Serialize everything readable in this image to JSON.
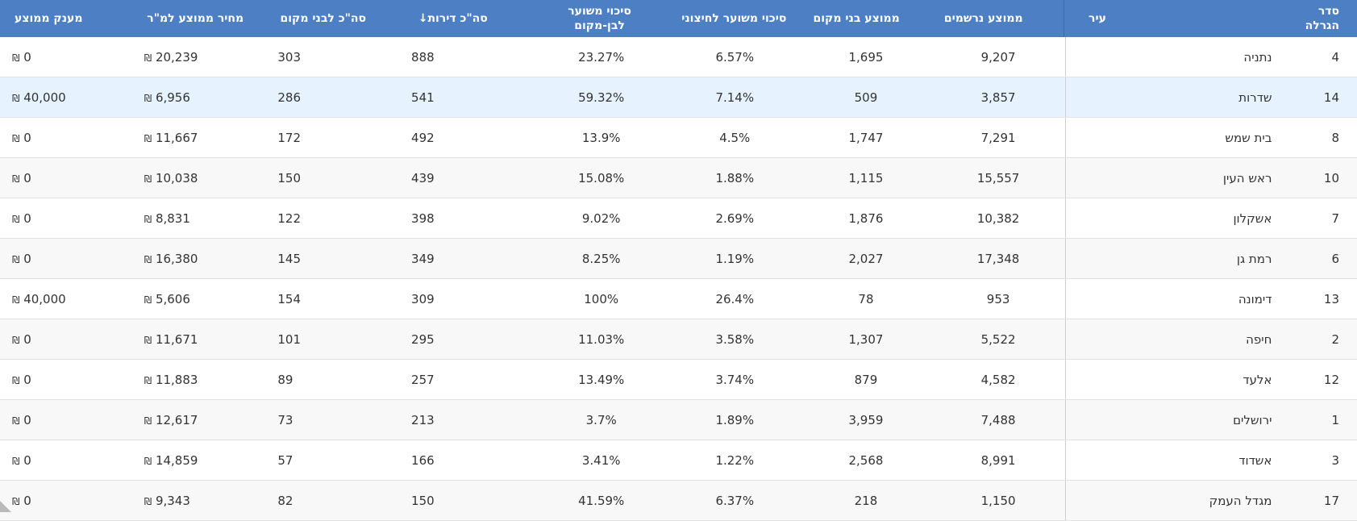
{
  "table": {
    "headers": {
      "order": "סדר הגרלה",
      "city": "עיר",
      "avg_registered": "ממוצע נרשמים",
      "avg_locals": "ממוצע בני מקום",
      "outsider_chance": "סיכוי משוער לחיצוני",
      "local_chance_line1": "סיכוי משוער",
      "local_chance_line2": "לבן-מקום",
      "total_apartments": "סה\"כ דירות",
      "total_locals": "סה\"כ לבני מקום",
      "avg_price_sqm": "מחיר ממוצע למ\"ר",
      "avg_grant": "מענק ממוצע"
    },
    "sort_icon": "arrow-down-icon",
    "sort_glyph": "↓",
    "currency_symbol": "₪",
    "rows": [
      {
        "order": "4",
        "city": "נתניה",
        "avg_registered": "9,207",
        "avg_locals": "1,695",
        "outsider_chance": "6.57%",
        "local_chance": "23.27%",
        "total_apartments": "888",
        "total_locals": "303",
        "price": "20,239",
        "grant": "0"
      },
      {
        "order": "14",
        "city": "שדרות",
        "avg_registered": "3,857",
        "avg_locals": "509",
        "outsider_chance": "7.14%",
        "local_chance": "59.32%",
        "total_apartments": "541",
        "total_locals": "286",
        "price": "6,956",
        "grant": "40,000"
      },
      {
        "order": "8",
        "city": "בית שמש",
        "avg_registered": "7,291",
        "avg_locals": "1,747",
        "outsider_chance": "4.5%",
        "local_chance": "13.9%",
        "total_apartments": "492",
        "total_locals": "172",
        "price": "11,667",
        "grant": "0"
      },
      {
        "order": "10",
        "city": "ראש העין",
        "avg_registered": "15,557",
        "avg_locals": "1,115",
        "outsider_chance": "1.88%",
        "local_chance": "15.08%",
        "total_apartments": "439",
        "total_locals": "150",
        "price": "10,038",
        "grant": "0"
      },
      {
        "order": "7",
        "city": "אשקלון",
        "avg_registered": "10,382",
        "avg_locals": "1,876",
        "outsider_chance": "2.69%",
        "local_chance": "9.02%",
        "total_apartments": "398",
        "total_locals": "122",
        "price": "8,831",
        "grant": "0"
      },
      {
        "order": "6",
        "city": "רמת גן",
        "avg_registered": "17,348",
        "avg_locals": "2,027",
        "outsider_chance": "1.19%",
        "local_chance": "8.25%",
        "total_apartments": "349",
        "total_locals": "145",
        "price": "16,380",
        "grant": "0"
      },
      {
        "order": "13",
        "city": "דימונה",
        "avg_registered": "953",
        "avg_locals": "78",
        "outsider_chance": "26.4%",
        "local_chance": "100%",
        "total_apartments": "309",
        "total_locals": "154",
        "price": "5,606",
        "grant": "40,000"
      },
      {
        "order": "2",
        "city": "חיפה",
        "avg_registered": "5,522",
        "avg_locals": "1,307",
        "outsider_chance": "3.58%",
        "local_chance": "11.03%",
        "total_apartments": "295",
        "total_locals": "101",
        "price": "11,671",
        "grant": "0"
      },
      {
        "order": "12",
        "city": "אלעד",
        "avg_registered": "4,582",
        "avg_locals": "879",
        "outsider_chance": "3.74%",
        "local_chance": "13.49%",
        "total_apartments": "257",
        "total_locals": "89",
        "price": "11,883",
        "grant": "0"
      },
      {
        "order": "1",
        "city": "ירושלים",
        "avg_registered": "7,488",
        "avg_locals": "3,959",
        "outsider_chance": "1.89%",
        "local_chance": "3.7%",
        "total_apartments": "213",
        "total_locals": "73",
        "price": "12,617",
        "grant": "0"
      },
      {
        "order": "3",
        "city": "אשדוד",
        "avg_registered": "8,991",
        "avg_locals": "2,568",
        "outsider_chance": "1.22%",
        "local_chance": "3.41%",
        "total_apartments": "166",
        "total_locals": "57",
        "price": "14,859",
        "grant": "0"
      },
      {
        "order": "17",
        "city": "מגדל העמק",
        "avg_registered": "1,150",
        "avg_locals": "218",
        "outsider_chance": "6.37%",
        "local_chance": "41.59%",
        "total_apartments": "150",
        "total_locals": "82",
        "price": "9,343",
        "grant": "0"
      }
    ]
  }
}
